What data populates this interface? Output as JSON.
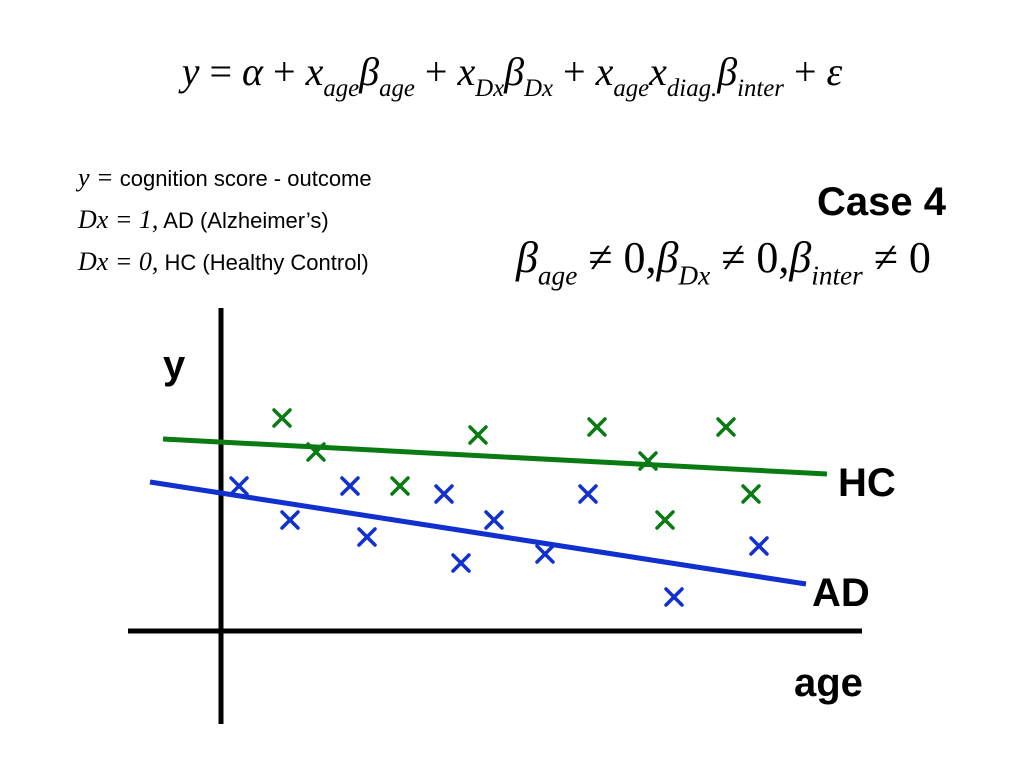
{
  "equation": {
    "y": "y",
    "eq": " = ",
    "alpha": "α",
    "plus": " + ",
    "x": "x",
    "beta": "β",
    "epsilon": "ε",
    "sub_age": "age",
    "sub_dx": "Dx",
    "sub_diag": "diag.",
    "sub_inter": "inter"
  },
  "legend": {
    "line1_math": "y =",
    "line1_text": "cognition score - outcome",
    "line2_math": "Dx = 1,",
    "line2_text": "AD (Alzheimer’s)",
    "line3_math": "Dx = 0,",
    "line3_text": "HC (Healthy Control)"
  },
  "case": {
    "title": "Case 4",
    "beta": "β",
    "sub_age": "age",
    "sub_dx": "Dx",
    "sub_inter": "inter",
    "neq_zero": " ≠ 0",
    "comma": ","
  },
  "chart_data": {
    "type": "scatter",
    "x_axis_label": "age",
    "y_axis_label": "y",
    "colors": {
      "HC": "#0a7a12",
      "AD": "#1030d0",
      "axis": "#000000"
    },
    "series": [
      {
        "name": "HC",
        "points": [
          [
            282,
            418
          ],
          [
            316,
            452
          ],
          [
            400,
            486
          ],
          [
            478,
            435
          ],
          [
            597,
            427
          ],
          [
            648,
            461
          ],
          [
            665,
            520
          ],
          [
            726,
            427
          ],
          [
            751,
            494
          ]
        ],
        "line": [
          [
            163,
            439
          ],
          [
            827,
            474
          ]
        ]
      },
      {
        "name": "AD",
        "points": [
          [
            239,
            486
          ],
          [
            290,
            520
          ],
          [
            350,
            486
          ],
          [
            367,
            537
          ],
          [
            444,
            494
          ],
          [
            461,
            563
          ],
          [
            494,
            520
          ],
          [
            545,
            554
          ],
          [
            588,
            494
          ],
          [
            674,
            597
          ],
          [
            759,
            546
          ]
        ],
        "line": [
          [
            150,
            482
          ],
          [
            806,
            584
          ]
        ]
      }
    ]
  }
}
